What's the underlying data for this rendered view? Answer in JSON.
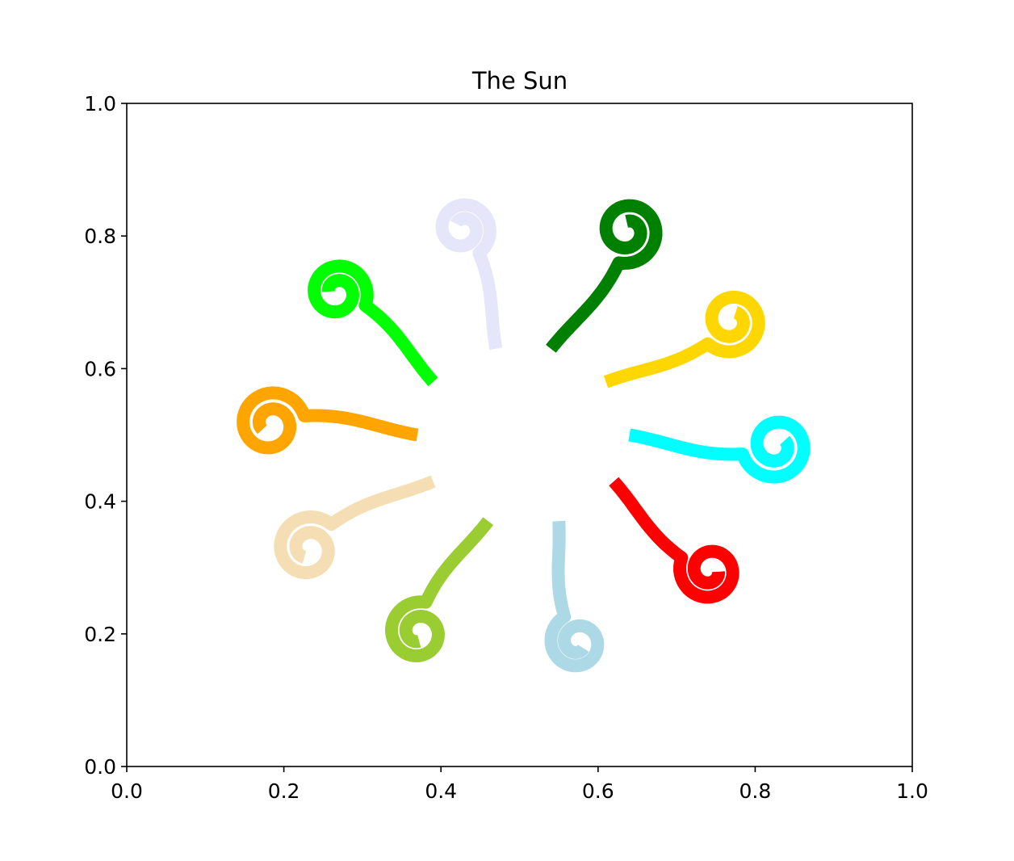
{
  "chart_data": {
    "type": "line",
    "title": "The Sun",
    "xlabel": "",
    "ylabel": "",
    "xlim": [
      0.0,
      1.0
    ],
    "ylim": [
      0.0,
      1.0
    ],
    "x_ticks": [
      "0.0",
      "0.2",
      "0.4",
      "0.6",
      "0.8",
      "1.0"
    ],
    "y_ticks": [
      "0.0",
      "0.2",
      "0.4",
      "0.6",
      "0.8",
      "1.0"
    ],
    "grid": false,
    "legend": "none",
    "series": [
      {
        "color": "#FFA500",
        "start": [
          0.37,
          0.5
        ],
        "end": [
          0.17,
          0.54
        ],
        "angle_deg": 180
      },
      {
        "color": "#00FF00",
        "start": [
          0.39,
          0.58
        ],
        "end": [
          0.27,
          0.74
        ],
        "angle_deg": 135
      },
      {
        "color": "#E6E6FA",
        "start": [
          0.47,
          0.63
        ],
        "end": [
          0.44,
          0.83
        ],
        "angle_deg": 95
      },
      {
        "color": "#008000",
        "start": [
          0.54,
          0.63
        ],
        "end": [
          0.66,
          0.81
        ],
        "angle_deg": 55
      },
      {
        "color": "#FFD700",
        "start": [
          0.61,
          0.58
        ],
        "end": [
          0.79,
          0.66
        ],
        "angle_deg": 25
      },
      {
        "color": "#00FFFF",
        "start": [
          0.64,
          0.5
        ],
        "end": [
          0.84,
          0.46
        ],
        "angle_deg": 0
      },
      {
        "color": "#FF0000",
        "start": [
          0.62,
          0.43
        ],
        "end": [
          0.74,
          0.27
        ],
        "angle_deg": -40
      },
      {
        "color": "#ADD8E6",
        "start": [
          0.55,
          0.37
        ],
        "end": [
          0.56,
          0.17
        ],
        "angle_deg": -85
      },
      {
        "color": "#9ACD32",
        "start": [
          0.46,
          0.37
        ],
        "end": [
          0.35,
          0.2
        ],
        "angle_deg": -125
      },
      {
        "color": "#F5DEB3",
        "start": [
          0.39,
          0.43
        ],
        "end": [
          0.21,
          0.34
        ],
        "angle_deg": -155
      }
    ]
  }
}
